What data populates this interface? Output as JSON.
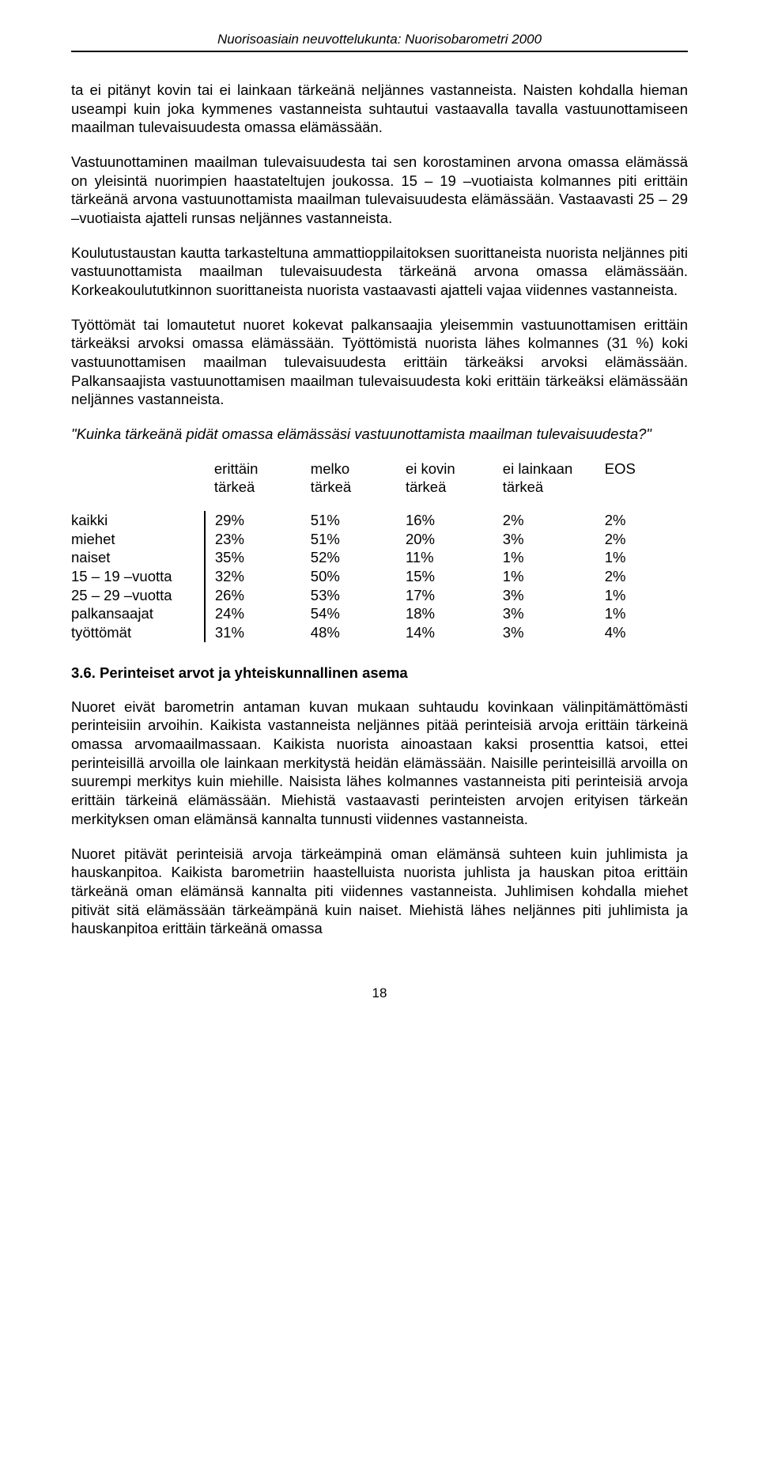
{
  "header": {
    "text": "Nuorisoasiain neuvottelukunta: Nuorisobarometri 2000"
  },
  "paragraphs": {
    "p1": "ta ei pitänyt kovin tai ei lainkaan tärkeänä neljännes vastanneista. Naisten kohdalla hieman useampi kuin joka kymmenes vastanneista suhtautui vastaavalla tavalla vastuunottamiseen maailman tulevaisuudesta omassa elämässään.",
    "p2": "Vastuunottaminen maailman tulevaisuudesta tai sen korostaminen arvona omassa elämässä on yleisintä nuorimpien haastateltujen joukossa. 15 – 19 –vuotiaista kolmannes piti erittäin tärkeänä arvona vastuunottamista maailman tulevaisuudesta elämässään. Vastaavasti 25 – 29 –vuotiaista ajatteli runsas neljännes vastanneista.",
    "p3": "Koulutustaustan kautta tarkasteltuna ammattioppilaitoksen suorittaneista nuorista neljännes piti vastuunottamista maailman tulevaisuudesta tärkeänä arvona omassa elämässään. Korkeakoulututkinnon suorittaneista nuorista vastaavasti ajatteli vajaa viidennes vastanneista.",
    "p4": "Työttömät tai lomautetut nuoret kokevat palkansaajia yleisemmin vastuunottamisen erittäin tärkeäksi arvoksi omassa elämässään. Työttömistä nuorista lähes kolmannes (31 %) koki vastuunottamisen maailman tulevaisuudesta erittäin tärkeäksi arvoksi elämässään. Palkansaajista vastuunottamisen maailman tulevaisuudesta koki erittäin tärkeäksi elämässään neljännes vastanneista.",
    "question": "\"Kuinka tärkeänä pidät omassa elämässäsi vastuunottamista maailman tulevaisuudesta?\"",
    "p5": "Nuoret eivät barometrin antaman kuvan mukaan suhtaudu kovinkaan välinpitämättömästi perinteisiin arvoihin. Kaikista vastanneista neljännes pitää perinteisiä arvoja erittäin tärkeinä omassa arvomaailmassaan. Kaikista nuorista ainoastaan kaksi prosenttia katsoi, ettei perinteisillä arvoilla ole lainkaan merkitystä heidän elämässään. Naisille perinteisillä arvoilla on suurempi merkitys kuin miehille. Naisista lähes kolmannes vastanneista piti perinteisiä arvoja erittäin tärkeinä elämässään. Miehistä vastaavasti perinteisten arvojen erityisen tärkeän merkityksen oman elämänsä kannalta tunnusti viidennes vastanneista.",
    "p6": "Nuoret pitävät perinteisiä arvoja tärkeämpinä oman elämänsä suhteen kuin juhlimista ja hauskanpitoa. Kaikista barometriin haastelluista nuorista juhlista ja hauskan pitoa erittäin tärkeänä oman elämänsä kannalta piti viidennes vastanneista. Juhlimisen kohdalla miehet pitivät sitä elämässään tärkeämpänä kuin naiset. Miehistä lähes neljännes piti juhlimista ja hauskanpitoa erittäin tärkeänä omassa"
  },
  "table": {
    "header_row1": [
      "",
      "erittäin",
      "melko",
      "ei kovin",
      "ei lainkaan",
      "EOS"
    ],
    "header_row2": [
      "",
      "tärkeä",
      "tärkeä",
      "tärkeä",
      "tärkeä",
      ""
    ],
    "rows": [
      {
        "label": "kaikki",
        "c1": "29%",
        "c2": "51%",
        "c3": "16%",
        "c4": "2%",
        "c5": "2%"
      },
      {
        "label": "miehet",
        "c1": "23%",
        "c2": "51%",
        "c3": "20%",
        "c4": "3%",
        "c5": "2%"
      },
      {
        "label": "naiset",
        "c1": "35%",
        "c2": "52%",
        "c3": "11%",
        "c4": "1%",
        "c5": "1%"
      },
      {
        "label": "15 – 19 –vuotta",
        "c1": "32%",
        "c2": "50%",
        "c3": "15%",
        "c4": "1%",
        "c5": "2%"
      },
      {
        "label": "25 – 29 –vuotta",
        "c1": "26%",
        "c2": "53%",
        "c3": "17%",
        "c4": "3%",
        "c5": "1%"
      },
      {
        "label": "palkansaajat",
        "c1": "24%",
        "c2": "54%",
        "c3": "18%",
        "c4": "3%",
        "c5": "1%"
      },
      {
        "label": "työttömät",
        "c1": "31%",
        "c2": "48%",
        "c3": "14%",
        "c4": "3%",
        "c5": "4%"
      }
    ]
  },
  "section_heading": "3.6. Perinteiset arvot ja yhteiskunnallinen asema",
  "page_number": "18"
}
